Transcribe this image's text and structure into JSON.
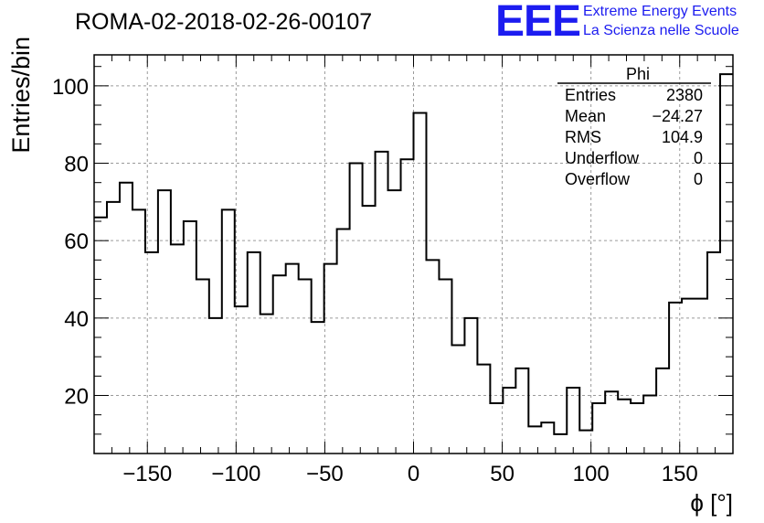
{
  "title": "ROMA-02-2018-02-26-00107",
  "logo": {
    "mark": "EEE",
    "line1": "Extreme Energy Events",
    "line2": "La Scienza nelle Scuole",
    "color": "#1c1cf0"
  },
  "stats": {
    "header": "Phi",
    "rows": [
      {
        "label": "Entries",
        "value": "2380"
      },
      {
        "label": "Mean",
        "value": "−24.27"
      },
      {
        "label": "RMS",
        "value": "104.9"
      },
      {
        "label": "Underflow",
        "value": "0"
      },
      {
        "label": "Overflow",
        "value": "0"
      }
    ]
  },
  "chart_data": {
    "type": "bar",
    "style": "step-histogram",
    "xlabel": "ϕ [°]",
    "ylabel": "Entries/bin",
    "xlim": [
      -180,
      180
    ],
    "ylim": [
      5,
      108
    ],
    "grid": true,
    "bin_width": 7.2,
    "x_ticks": [
      -150,
      -100,
      -50,
      0,
      50,
      100,
      150
    ],
    "x_tick_labels": [
      "−150",
      "−100",
      "−50",
      "0",
      "50",
      "100",
      "150"
    ],
    "y_ticks": [
      20,
      40,
      60,
      80,
      100
    ],
    "y_tick_labels": [
      "20",
      "40",
      "60",
      "80",
      "100"
    ],
    "values": [
      66,
      70,
      75,
      68,
      57,
      73,
      59,
      65,
      50,
      40,
      68,
      43,
      57,
      41,
      51,
      54,
      50,
      39,
      54,
      63,
      80,
      69,
      83,
      73,
      81,
      93,
      55,
      50,
      33,
      40,
      28,
      18,
      22,
      27,
      12,
      13,
      10,
      22,
      11,
      18,
      21,
      19,
      18,
      20,
      27,
      44,
      45,
      45,
      57,
      103
    ],
    "line_color": "#000000"
  }
}
